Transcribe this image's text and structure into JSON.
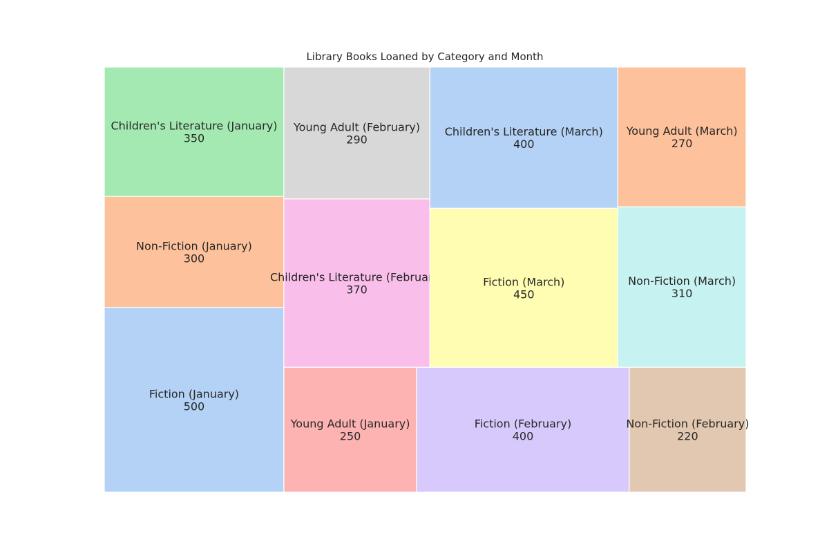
{
  "chart_data": {
    "type": "treemap",
    "title": "Library Books Loaned by Category and Month",
    "xlabel": "",
    "ylabel": "",
    "grid": false,
    "items": [
      {
        "label": "Fiction (January)",
        "category": "Fiction",
        "month": "January",
        "value": 500,
        "color": "#b4d2f5"
      },
      {
        "label": "Non-Fiction (January)",
        "category": "Non-Fiction",
        "month": "January",
        "value": 300,
        "color": "#fdc29b"
      },
      {
        "label": "Children's Literature (January)",
        "category": "Children's Literature",
        "month": "January",
        "value": 350,
        "color": "#a4e9b2"
      },
      {
        "label": "Young Adult (January)",
        "category": "Young Adult",
        "month": "January",
        "value": 250,
        "color": "#fdb3b1"
      },
      {
        "label": "Children's Literature (February)",
        "category": "Children's Literature",
        "month": "February",
        "value": 370,
        "color": "#f9beea"
      },
      {
        "label": "Young Adult (February)",
        "category": "Young Adult",
        "month": "February",
        "value": 290,
        "color": "#d8d8d8"
      },
      {
        "label": "Fiction (February)",
        "category": "Fiction",
        "month": "February",
        "value": 400,
        "color": "#d8c9fd"
      },
      {
        "label": "Non-Fiction (February)",
        "category": "Non-Fiction",
        "month": "February",
        "value": 220,
        "color": "#e2c8b0"
      },
      {
        "label": "Fiction (March)",
        "category": "Fiction",
        "month": "March",
        "value": 450,
        "color": "#fffdb2"
      },
      {
        "label": "Non-Fiction (March)",
        "category": "Non-Fiction",
        "month": "March",
        "value": 310,
        "color": "#c6f2f1"
      },
      {
        "label": "Children's Literature (March)",
        "category": "Children's Literature",
        "month": "March",
        "value": 400,
        "color": "#b4d2f5"
      },
      {
        "label": "Young Adult (March)",
        "category": "Young Adult",
        "month": "March",
        "value": 270,
        "color": "#fdc29b"
      }
    ]
  }
}
